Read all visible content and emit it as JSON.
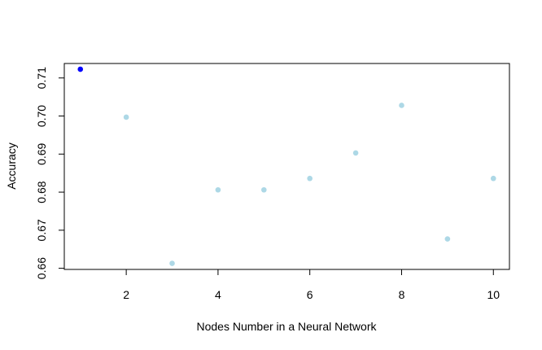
{
  "chart_data": {
    "type": "scatter",
    "title": "",
    "xlabel": "Nodes Number in a Neural Network",
    "ylabel": "Accuracy",
    "xlim": [
      0.65,
      10.35
    ],
    "ylim": [
      0.6597,
      0.7138
    ],
    "x_ticks": [
      2,
      4,
      6,
      8,
      10
    ],
    "x_tick_labels": [
      "2",
      "4",
      "6",
      "8",
      "10"
    ],
    "y_ticks": [
      0.66,
      0.67,
      0.68,
      0.69,
      0.7,
      0.71
    ],
    "y_tick_labels": [
      "0.66",
      "0.67",
      "0.68",
      "0.69",
      "0.70",
      "0.71"
    ],
    "grid": false,
    "colors": {
      "highlight": "#0000ff",
      "default": "#add8e6"
    },
    "points": [
      {
        "x": 1,
        "y": 0.7123,
        "highlight": true
      },
      {
        "x": 2,
        "y": 0.6997,
        "highlight": false
      },
      {
        "x": 3,
        "y": 0.6613,
        "highlight": false
      },
      {
        "x": 4,
        "y": 0.6806,
        "highlight": false
      },
      {
        "x": 5,
        "y": 0.6806,
        "highlight": false
      },
      {
        "x": 6,
        "y": 0.6836,
        "highlight": false
      },
      {
        "x": 7,
        "y": 0.6903,
        "highlight": false
      },
      {
        "x": 8,
        "y": 0.7028,
        "highlight": false
      },
      {
        "x": 9,
        "y": 0.6677,
        "highlight": false
      },
      {
        "x": 10,
        "y": 0.6836,
        "highlight": false
      }
    ]
  }
}
